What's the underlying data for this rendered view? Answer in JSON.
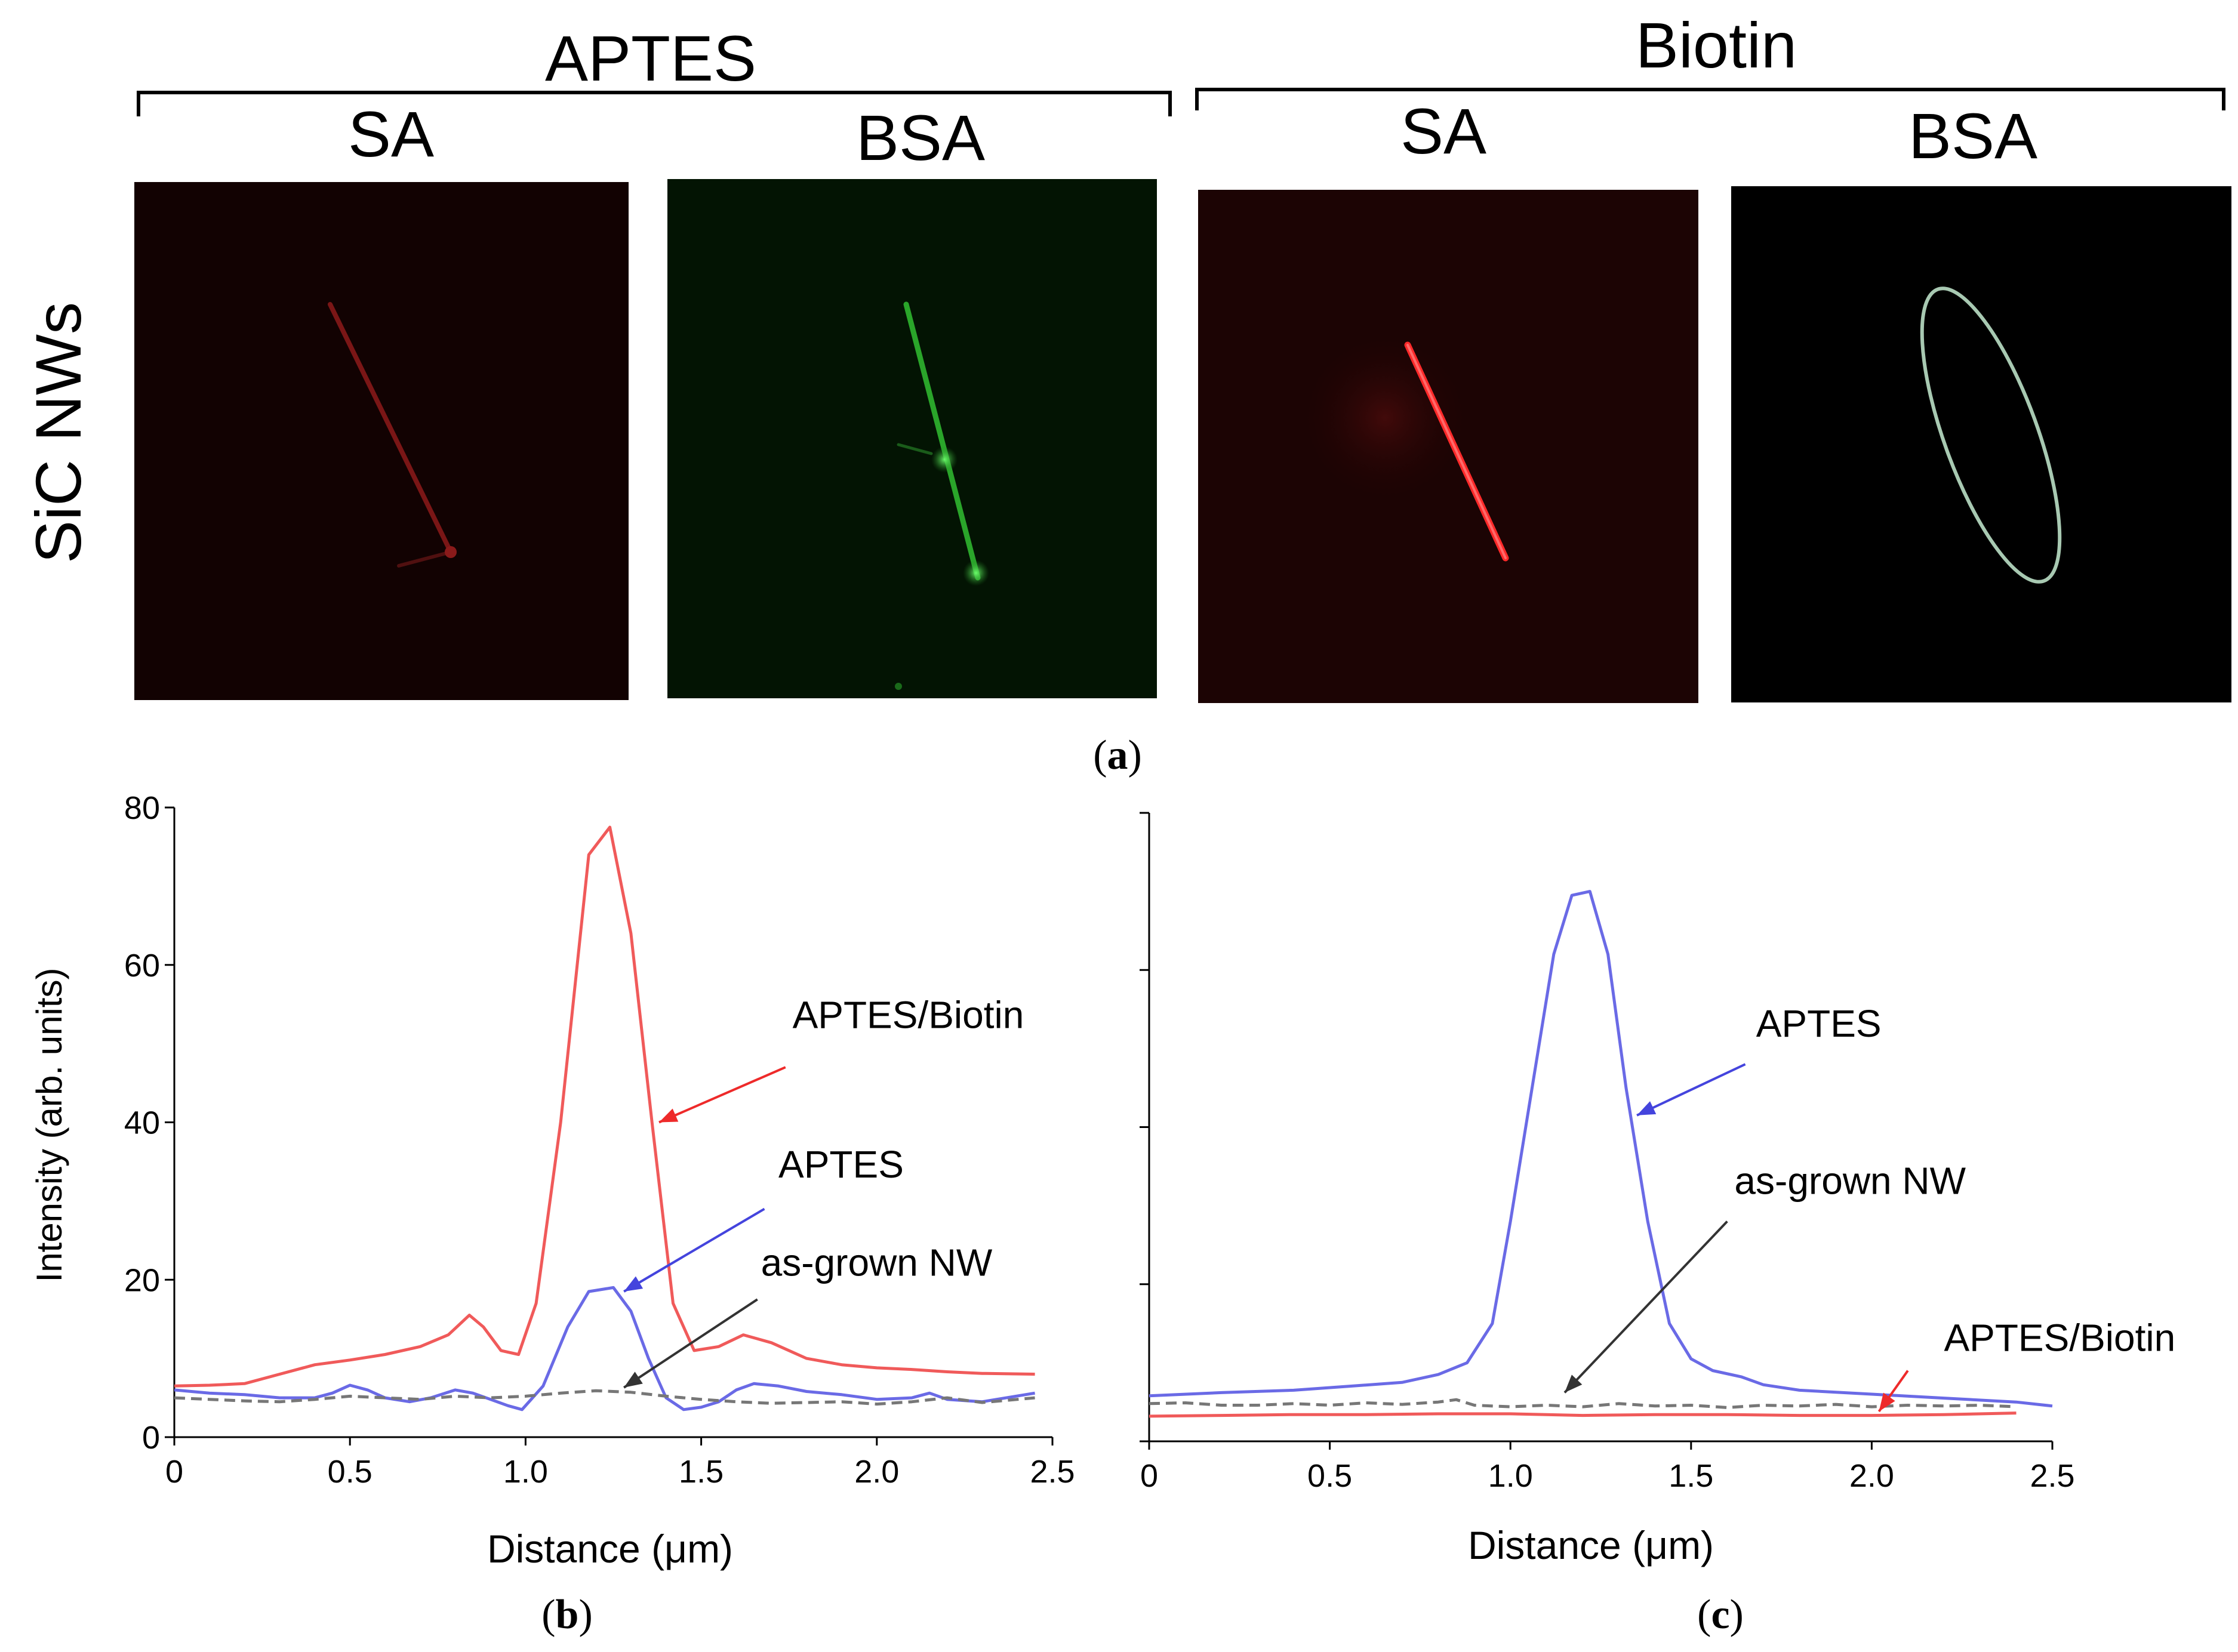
{
  "panel_a": {
    "group_labels": [
      "APTES",
      "Biotin"
    ],
    "column_labels": [
      "SA",
      "BSA",
      "SA",
      "BSA"
    ],
    "row_label": "SiC NWs",
    "caption": "(a)",
    "caption_letter": "a"
  },
  "colors": {
    "red_series": "#f05a5a",
    "blue_series": "#6a6ae6",
    "gray_series": "#777777",
    "red_arrow": "#ee2a2a",
    "blue_arrow": "#4444dd",
    "gray_arrow": "#333333"
  },
  "chart_data": [
    {
      "type": "line",
      "panel": "b",
      "caption": "(b)",
      "caption_letter": "b",
      "title": "",
      "xlabel": "Distance (μm)",
      "ylabel": "Intensity (arb. units)",
      "xlim": [
        0,
        2.5
      ],
      "ylim": [
        0,
        80
      ],
      "x_ticks": [
        0,
        0.5,
        1.0,
        1.5,
        2.0,
        2.5
      ],
      "x_tick_labels": [
        "0",
        "0.5",
        "1.0",
        "1.5",
        "2.0",
        "2.5"
      ],
      "y_ticks": [
        0,
        20,
        40,
        60,
        80
      ],
      "y_tick_labels": [
        "0",
        "20",
        "40",
        "60",
        "80"
      ],
      "grid": false,
      "series": [
        {
          "name": "APTES/Biotin",
          "color": "#f05a5a",
          "dashed": false,
          "points": [
            [
              0,
              6.5
            ],
            [
              0.1,
              6.6
            ],
            [
              0.2,
              6.8
            ],
            [
              0.3,
              8
            ],
            [
              0.4,
              9.2
            ],
            [
              0.5,
              9.8
            ],
            [
              0.6,
              10.5
            ],
            [
              0.7,
              11.5
            ],
            [
              0.78,
              13
            ],
            [
              0.84,
              15.5
            ],
            [
              0.88,
              14
            ],
            [
              0.93,
              11
            ],
            [
              0.98,
              10.5
            ],
            [
              1.03,
              17
            ],
            [
              1.1,
              40
            ],
            [
              1.18,
              74
            ],
            [
              1.24,
              77.5
            ],
            [
              1.3,
              64
            ],
            [
              1.36,
              40
            ],
            [
              1.42,
              17
            ],
            [
              1.48,
              11
            ],
            [
              1.55,
              11.5
            ],
            [
              1.62,
              13
            ],
            [
              1.7,
              12
            ],
            [
              1.8,
              10
            ],
            [
              1.9,
              9.2
            ],
            [
              2.0,
              8.8
            ],
            [
              2.1,
              8.6
            ],
            [
              2.2,
              8.3
            ],
            [
              2.3,
              8.1
            ],
            [
              2.45,
              8
            ]
          ]
        },
        {
          "name": "APTES",
          "color": "#6a6ae6",
          "dashed": false,
          "points": [
            [
              0,
              6
            ],
            [
              0.1,
              5.6
            ],
            [
              0.2,
              5.4
            ],
            [
              0.3,
              5
            ],
            [
              0.4,
              5
            ],
            [
              0.45,
              5.6
            ],
            [
              0.5,
              6.6
            ],
            [
              0.55,
              6
            ],
            [
              0.6,
              5
            ],
            [
              0.67,
              4.5
            ],
            [
              0.73,
              5
            ],
            [
              0.8,
              6
            ],
            [
              0.85,
              5.6
            ],
            [
              0.9,
              4.8
            ],
            [
              0.95,
              4
            ],
            [
              0.99,
              3.5
            ],
            [
              1.05,
              6.5
            ],
            [
              1.12,
              14
            ],
            [
              1.18,
              18.5
            ],
            [
              1.25,
              19
            ],
            [
              1.3,
              16
            ],
            [
              1.35,
              10
            ],
            [
              1.4,
              5
            ],
            [
              1.45,
              3.5
            ],
            [
              1.5,
              3.8
            ],
            [
              1.55,
              4.5
            ],
            [
              1.6,
              6
            ],
            [
              1.65,
              6.8
            ],
            [
              1.72,
              6.5
            ],
            [
              1.8,
              5.8
            ],
            [
              1.9,
              5.4
            ],
            [
              2.0,
              4.8
            ],
            [
              2.1,
              5
            ],
            [
              2.15,
              5.6
            ],
            [
              2.2,
              4.8
            ],
            [
              2.3,
              4.5
            ],
            [
              2.45,
              5.6
            ]
          ]
        },
        {
          "name": "as-grown NW",
          "color": "#777777",
          "dashed": true,
          "points": [
            [
              0,
              5
            ],
            [
              0.1,
              4.8
            ],
            [
              0.2,
              4.6
            ],
            [
              0.3,
              4.5
            ],
            [
              0.4,
              4.8
            ],
            [
              0.5,
              5.2
            ],
            [
              0.6,
              5
            ],
            [
              0.7,
              4.8
            ],
            [
              0.8,
              5.2
            ],
            [
              0.9,
              5
            ],
            [
              1.0,
              5.2
            ],
            [
              1.1,
              5.6
            ],
            [
              1.2,
              5.9
            ],
            [
              1.3,
              5.7
            ],
            [
              1.4,
              5.2
            ],
            [
              1.5,
              4.8
            ],
            [
              1.6,
              4.5
            ],
            [
              1.7,
              4.3
            ],
            [
              1.8,
              4.4
            ],
            [
              1.9,
              4.5
            ],
            [
              2.0,
              4.2
            ],
            [
              2.1,
              4.5
            ],
            [
              2.2,
              5
            ],
            [
              2.3,
              4.4
            ],
            [
              2.45,
              5
            ]
          ]
        }
      ],
      "annotations": [
        {
          "text": "APTES/Biotin",
          "color": "#ee2a2a",
          "label_at": [
            1.76,
            52
          ],
          "arrow_from": [
            1.74,
            47
          ],
          "arrow_to": [
            1.38,
            40
          ]
        },
        {
          "text": "APTES",
          "color": "#4444dd",
          "label_at": [
            1.72,
            33
          ],
          "arrow_from": [
            1.68,
            29
          ],
          "arrow_to": [
            1.28,
            18.5
          ]
        },
        {
          "text": "as-grown NW",
          "color": "#333333",
          "label_at": [
            1.67,
            20.5
          ],
          "arrow_from": [
            1.66,
            17.5
          ],
          "arrow_to": [
            1.28,
            6.3
          ]
        }
      ]
    },
    {
      "type": "line",
      "panel": "c",
      "caption": "(c)",
      "caption_letter": "c",
      "title": "",
      "xlabel": "Distance (μm)",
      "ylabel": "",
      "xlim": [
        0,
        2.5
      ],
      "ylim": [
        0,
        80
      ],
      "x_ticks": [
        0,
        0.5,
        1.0,
        1.5,
        2.0,
        2.5
      ],
      "x_tick_labels": [
        "0",
        "0.5",
        "1.0",
        "1.5",
        "2.0",
        "2.5"
      ],
      "y_ticks": [
        0,
        20,
        40,
        60,
        80
      ],
      "y_tick_labels": [],
      "grid": false,
      "series": [
        {
          "name": "APTES",
          "color": "#6a6ae6",
          "dashed": false,
          "points": [
            [
              0,
              5.8
            ],
            [
              0.2,
              6.2
            ],
            [
              0.4,
              6.5
            ],
            [
              0.55,
              7
            ],
            [
              0.7,
              7.5
            ],
            [
              0.8,
              8.5
            ],
            [
              0.88,
              10
            ],
            [
              0.95,
              15
            ],
            [
              1.0,
              28
            ],
            [
              1.06,
              45
            ],
            [
              1.12,
              62
            ],
            [
              1.17,
              69.5
            ],
            [
              1.22,
              70
            ],
            [
              1.27,
              62
            ],
            [
              1.32,
              45
            ],
            [
              1.38,
              28
            ],
            [
              1.44,
              15
            ],
            [
              1.5,
              10.5
            ],
            [
              1.56,
              9
            ],
            [
              1.64,
              8.2
            ],
            [
              1.7,
              7.2
            ],
            [
              1.8,
              6.5
            ],
            [
              2.0,
              6
            ],
            [
              2.2,
              5.5
            ],
            [
              2.4,
              5
            ],
            [
              2.5,
              4.5
            ]
          ]
        },
        {
          "name": "as-grown NW",
          "color": "#777777",
          "dashed": true,
          "points": [
            [
              0,
              4.8
            ],
            [
              0.1,
              4.9
            ],
            [
              0.2,
              4.6
            ],
            [
              0.3,
              4.6
            ],
            [
              0.4,
              4.8
            ],
            [
              0.5,
              4.6
            ],
            [
              0.6,
              4.9
            ],
            [
              0.7,
              4.7
            ],
            [
              0.8,
              5
            ],
            [
              0.85,
              5.3
            ],
            [
              0.9,
              4.6
            ],
            [
              1.0,
              4.4
            ],
            [
              1.1,
              4.6
            ],
            [
              1.2,
              4.4
            ],
            [
              1.3,
              4.8
            ],
            [
              1.4,
              4.5
            ],
            [
              1.5,
              4.6
            ],
            [
              1.6,
              4.3
            ],
            [
              1.7,
              4.6
            ],
            [
              1.8,
              4.5
            ],
            [
              1.9,
              4.7
            ],
            [
              2.0,
              4.4
            ],
            [
              2.1,
              4.6
            ],
            [
              2.2,
              4.5
            ],
            [
              2.3,
              4.6
            ],
            [
              2.4,
              4.4
            ]
          ]
        },
        {
          "name": "APTES/Biotin",
          "color": "#f05a5a",
          "dashed": false,
          "points": [
            [
              0,
              3.2
            ],
            [
              0.2,
              3.3
            ],
            [
              0.4,
              3.4
            ],
            [
              0.6,
              3.4
            ],
            [
              0.8,
              3.5
            ],
            [
              1.0,
              3.5
            ],
            [
              1.2,
              3.3
            ],
            [
              1.4,
              3.4
            ],
            [
              1.6,
              3.4
            ],
            [
              1.8,
              3.3
            ],
            [
              2.0,
              3.3
            ],
            [
              2.2,
              3.4
            ],
            [
              2.4,
              3.6
            ]
          ]
        }
      ],
      "annotations": [
        {
          "text": "APTES",
          "color": "#4444dd",
          "label_at": [
            1.68,
            51.5
          ],
          "arrow_from": [
            1.65,
            48
          ],
          "arrow_to": [
            1.35,
            41.5
          ]
        },
        {
          "text": "as-grown NW",
          "color": "#333333",
          "label_at": [
            1.62,
            31.5
          ],
          "arrow_from": [
            1.6,
            28
          ],
          "arrow_to": [
            1.15,
            6.2
          ]
        },
        {
          "text": "APTES/Biotin",
          "color": "#ee2a2a",
          "label_at": [
            2.2,
            11.5
          ],
          "arrow_from": [
            2.1,
            9
          ],
          "arrow_to": [
            2.02,
            3.8
          ]
        }
      ]
    }
  ]
}
